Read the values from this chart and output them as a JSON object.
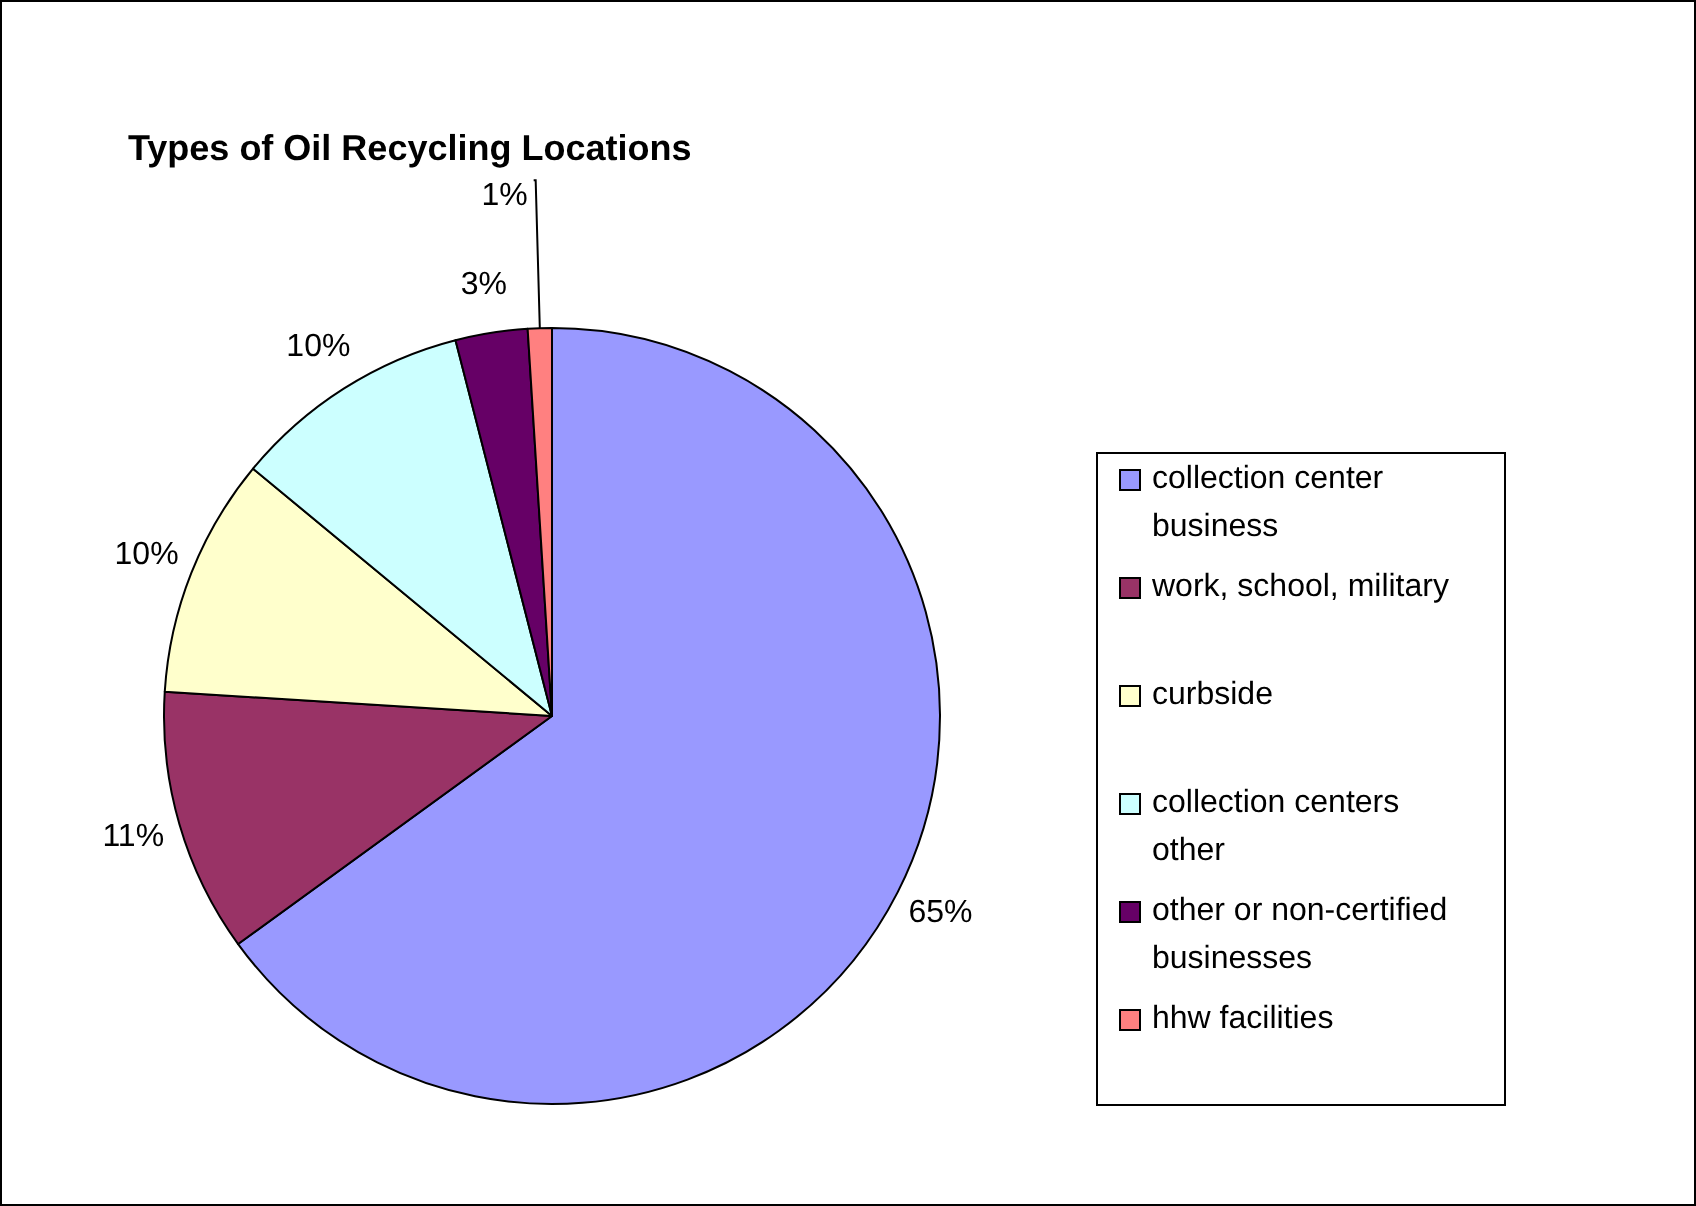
{
  "chart_data": {
    "type": "pie",
    "title": "Types of Oil Recycling Locations",
    "categories": [
      "collection center business",
      "work, school, military",
      "curbside",
      "collection centers other",
      "other or non-certified businesses",
      "hhw facilities"
    ],
    "values": [
      65,
      11,
      10,
      10,
      3,
      1
    ],
    "colors": [
      "#9999ff",
      "#993366",
      "#ffffcc",
      "#ccffff",
      "#660066",
      "#ff8080"
    ],
    "value_labels": [
      "65%",
      "11%",
      "10%",
      "10%",
      "3%",
      "1%"
    ],
    "legend": "right"
  }
}
